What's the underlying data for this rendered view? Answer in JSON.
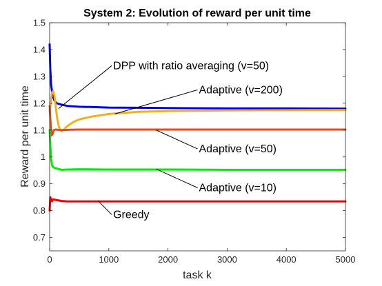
{
  "chart_data": {
    "type": "line",
    "title": "System 2: Evolution of reward per unit time",
    "xlabel": "task k",
    "ylabel": "Reward per unit time",
    "xlim": [
      0,
      5000
    ],
    "ylim": [
      0.65,
      1.5
    ],
    "xticks": [
      "0",
      "1000",
      "2000",
      "3000",
      "4000",
      "5000"
    ],
    "yticks": [
      "0.7",
      "0.8",
      "0.9",
      "1",
      "1.1",
      "1.2",
      "1.3",
      "1.4",
      "1.5"
    ],
    "grid": false,
    "series": [
      {
        "color": "#0000ee",
        "x": [
          0,
          10,
          25,
          50,
          80,
          120,
          200,
          300,
          500,
          700,
          1000,
          1500,
          2000,
          3000,
          4000,
          5000
        ],
        "y": [
          1.42,
          1.33,
          1.27,
          1.23,
          1.21,
          1.2,
          1.195,
          1.19,
          1.187,
          1.186,
          1.184,
          1.183,
          1.182,
          1.181,
          1.181,
          1.18
        ]
      },
      {
        "color": "#f0b020",
        "x": [
          0,
          20,
          40,
          60,
          80,
          100,
          130,
          160,
          200,
          250,
          300,
          400,
          500,
          700,
          1000,
          1500,
          2000,
          3000,
          4000,
          5000
        ],
        "y": [
          1.17,
          1.2,
          1.24,
          1.245,
          1.23,
          1.19,
          1.14,
          1.11,
          1.095,
          1.105,
          1.115,
          1.13,
          1.14,
          1.15,
          1.16,
          1.168,
          1.171,
          1.173,
          1.174,
          1.175
        ]
      },
      {
        "color": "#d95319",
        "x": [
          0,
          15,
          30,
          50,
          70,
          100,
          150,
          200,
          300,
          500,
          1000,
          2000,
          3000,
          4000,
          5000
        ],
        "y": [
          1.19,
          1.13,
          1.08,
          1.085,
          1.1,
          1.102,
          1.101,
          1.1,
          1.101,
          1.102,
          1.102,
          1.102,
          1.102,
          1.102,
          1.102
        ]
      },
      {
        "color": "#00ee00",
        "x": [
          0,
          10,
          20,
          40,
          60,
          100,
          150,
          200,
          300,
          500,
          1000,
          2000,
          3000,
          4000,
          5000
        ],
        "y": [
          1.1,
          1.05,
          1.0,
          0.97,
          0.962,
          0.958,
          0.955,
          0.952,
          0.953,
          0.954,
          0.953,
          0.953,
          0.952,
          0.952,
          0.952
        ]
      },
      {
        "color": "#ee0000",
        "x": [
          0,
          10,
          20,
          40,
          60,
          100,
          200,
          300,
          500,
          1000,
          2000,
          3000,
          4000,
          5000
        ],
        "y": [
          0.8,
          0.85,
          0.845,
          0.835,
          0.842,
          0.84,
          0.836,
          0.834,
          0.834,
          0.834,
          0.834,
          0.834,
          0.834,
          0.834
        ]
      }
    ],
    "annotations": [
      {
        "text": "DPP with ratio averaging (v=50)",
        "point": [
          150,
          1.18
        ],
        "text_at": [
          1050,
          1.34
        ]
      },
      {
        "text": "Adaptive (v=200)",
        "point": [
          1100,
          1.16
        ],
        "text_at": [
          2500,
          1.25
        ]
      },
      {
        "text": "Adaptive (v=50)",
        "point": [
          1800,
          1.1
        ],
        "text_at": [
          2500,
          1.03
        ]
      },
      {
        "text": "Adaptive (v=10)",
        "point": [
          1800,
          0.955
        ],
        "text_at": [
          2500,
          0.885
        ]
      },
      {
        "text": "Greedy",
        "point": [
          820,
          0.836
        ],
        "text_at": [
          1050,
          0.785
        ]
      }
    ]
  }
}
